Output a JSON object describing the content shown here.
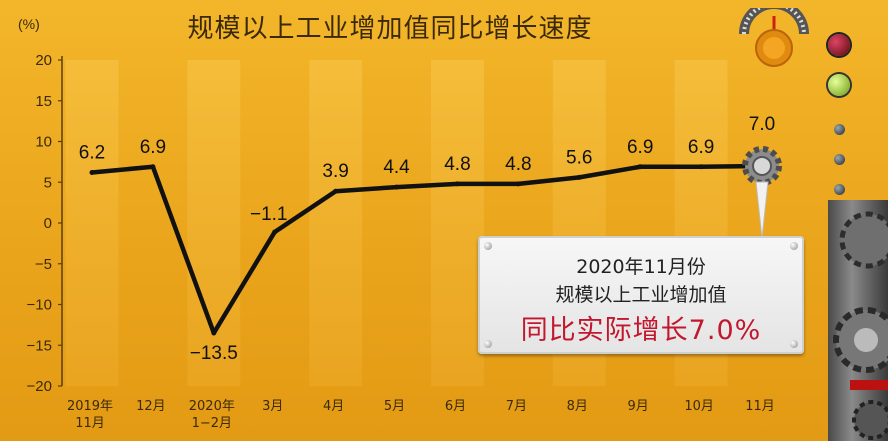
{
  "chart_data": {
    "type": "line",
    "title": "规模以上工业增加值同比增长速度",
    "unit": "(%)",
    "categories": [
      [
        "2019年",
        "11月"
      ],
      [
        "12月"
      ],
      [
        "2020年",
        "1−2月"
      ],
      [
        "3月"
      ],
      [
        "4月"
      ],
      [
        "5月"
      ],
      [
        "6月"
      ],
      [
        "7月"
      ],
      [
        "8月"
      ],
      [
        "9月"
      ],
      [
        "10月"
      ],
      [
        "11月"
      ]
    ],
    "values": [
      6.2,
      6.9,
      -13.5,
      -1.1,
      3.9,
      4.4,
      4.8,
      4.8,
      5.6,
      6.9,
      6.9,
      7.0
    ],
    "data_labels": [
      "6.2",
      "6.9",
      "−13.5",
      "−1.1",
      "3.9",
      "4.4",
      "4.8",
      "4.8",
      "5.6",
      "6.9",
      "6.9",
      "7.0"
    ],
    "y_ticks": [
      20,
      15,
      10,
      5,
      0,
      -5,
      -10,
      -15,
      -20
    ],
    "y_tick_labels": [
      "20",
      "15",
      "10",
      "5",
      "0",
      "−5",
      "−10",
      "−15",
      "−20"
    ],
    "ylim": [
      -20,
      20
    ],
    "grid": true,
    "line_color": "#111111"
  },
  "callout": {
    "line1": "2020年11月份",
    "line2": "规模以上工业增加值",
    "line3": "同比实际增长7.0%",
    "highlight_color": "#c2172e"
  },
  "decor": {
    "lamp_top_color": "#7a0d12",
    "lamp_green_color": "#9ccc2a",
    "gauge_icon": "gauge-icon",
    "gear_icon": "gear-icon"
  }
}
